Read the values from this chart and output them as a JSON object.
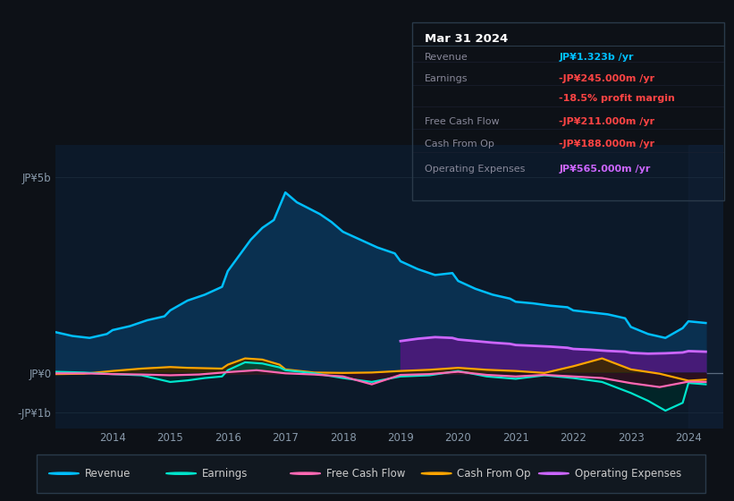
{
  "background_color": "#0d1117",
  "plot_bg_color": "#0c1929",
  "ylim": [
    -1400000000.0,
    5800000000.0
  ],
  "xlim": [
    2013.0,
    2024.6
  ],
  "ytick_values": [
    5000000000,
    0,
    -1000000000
  ],
  "ytick_labels": [
    "JP¥5b",
    "JP¥0",
    "-JP¥1b"
  ],
  "xtick_years": [
    2014,
    2015,
    2016,
    2017,
    2018,
    2019,
    2020,
    2021,
    2022,
    2023,
    2024
  ],
  "revenue_x": [
    2013.0,
    2013.3,
    2013.6,
    2013.9,
    2014.0,
    2014.3,
    2014.6,
    2014.9,
    2015.0,
    2015.3,
    2015.6,
    2015.9,
    2016.0,
    2016.2,
    2016.4,
    2016.6,
    2016.8,
    2017.0,
    2017.2,
    2017.4,
    2017.6,
    2017.8,
    2018.0,
    2018.3,
    2018.6,
    2018.9,
    2019.0,
    2019.3,
    2019.6,
    2019.9,
    2020.0,
    2020.3,
    2020.6,
    2020.9,
    2021.0,
    2021.3,
    2021.6,
    2021.9,
    2022.0,
    2022.3,
    2022.6,
    2022.9,
    2023.0,
    2023.3,
    2023.6,
    2023.9,
    2024.0,
    2024.3
  ],
  "revenue_y": [
    1050000000.0,
    950000000.0,
    900000000.0,
    1000000000.0,
    1100000000.0,
    1200000000.0,
    1350000000.0,
    1450000000.0,
    1600000000.0,
    1850000000.0,
    2000000000.0,
    2200000000.0,
    2600000000.0,
    3000000000.0,
    3400000000.0,
    3700000000.0,
    3900000000.0,
    4600000000.0,
    4350000000.0,
    4200000000.0,
    4050000000.0,
    3850000000.0,
    3600000000.0,
    3400000000.0,
    3200000000.0,
    3050000000.0,
    2850000000.0,
    2650000000.0,
    2500000000.0,
    2550000000.0,
    2350000000.0,
    2150000000.0,
    2000000000.0,
    1900000000.0,
    1820000000.0,
    1780000000.0,
    1720000000.0,
    1680000000.0,
    1600000000.0,
    1550000000.0,
    1500000000.0,
    1400000000.0,
    1180000000.0,
    1000000000.0,
    900000000.0,
    1150000000.0,
    1323000000.0,
    1280000000.0
  ],
  "earnings_x": [
    2013.0,
    2013.5,
    2014.0,
    2014.5,
    2015.0,
    2015.3,
    2015.6,
    2015.9,
    2016.0,
    2016.3,
    2016.6,
    2016.9,
    2017.0,
    2017.5,
    2018.0,
    2018.5,
    2019.0,
    2019.5,
    2020.0,
    2020.5,
    2021.0,
    2021.5,
    2022.0,
    2022.5,
    2023.0,
    2023.3,
    2023.6,
    2023.9,
    2024.0,
    2024.3
  ],
  "earnings_y": [
    40000000.0,
    20000000.0,
    -20000000.0,
    -50000000.0,
    -220000000.0,
    -180000000.0,
    -120000000.0,
    -80000000.0,
    80000000.0,
    280000000.0,
    250000000.0,
    150000000.0,
    80000000.0,
    0.0,
    -120000000.0,
    -220000000.0,
    -80000000.0,
    -50000000.0,
    60000000.0,
    -80000000.0,
    -140000000.0,
    -50000000.0,
    -120000000.0,
    -220000000.0,
    -500000000.0,
    -700000000.0,
    -950000000.0,
    -750000000.0,
    -245000000.0,
    -280000000.0
  ],
  "fcf_x": [
    2013.0,
    2013.5,
    2014.0,
    2014.5,
    2015.0,
    2015.5,
    2016.0,
    2016.5,
    2017.0,
    2017.5,
    2018.0,
    2018.5,
    2019.0,
    2019.5,
    2020.0,
    2020.5,
    2021.0,
    2021.5,
    2022.0,
    2022.5,
    2023.0,
    2023.5,
    2024.0,
    2024.3
  ],
  "fcf_y": [
    0.0,
    0.0,
    -20000000.0,
    -30000000.0,
    -50000000.0,
    -30000000.0,
    30000000.0,
    80000000.0,
    0.0,
    -30000000.0,
    -80000000.0,
    -280000000.0,
    -40000000.0,
    -20000000.0,
    40000000.0,
    -40000000.0,
    -80000000.0,
    -40000000.0,
    -80000000.0,
    -120000000.0,
    -250000000.0,
    -350000000.0,
    -211000000.0,
    -220000000.0
  ],
  "cfop_x": [
    2013.0,
    2013.5,
    2014.0,
    2014.5,
    2015.0,
    2015.3,
    2015.6,
    2015.9,
    2016.0,
    2016.3,
    2016.6,
    2016.9,
    2017.0,
    2017.5,
    2018.0,
    2018.5,
    2019.0,
    2019.5,
    2020.0,
    2020.5,
    2021.0,
    2021.5,
    2022.0,
    2022.5,
    2023.0,
    2023.5,
    2024.0,
    2024.3
  ],
  "cfop_y": [
    -20000000.0,
    -10000000.0,
    60000000.0,
    120000000.0,
    160000000.0,
    140000000.0,
    130000000.0,
    120000000.0,
    220000000.0,
    380000000.0,
    350000000.0,
    220000000.0,
    100000000.0,
    20000000.0,
    10000000.0,
    20000000.0,
    60000000.0,
    90000000.0,
    140000000.0,
    90000000.0,
    60000000.0,
    10000000.0,
    180000000.0,
    380000000.0,
    100000000.0,
    -10000000.0,
    -188000000.0,
    -160000000.0
  ],
  "opex_x": [
    2019.0,
    2019.3,
    2019.6,
    2019.9,
    2020.0,
    2020.3,
    2020.6,
    2020.9,
    2021.0,
    2021.3,
    2021.6,
    2021.9,
    2022.0,
    2022.3,
    2022.6,
    2022.9,
    2023.0,
    2023.3,
    2023.6,
    2023.9,
    2024.0,
    2024.3
  ],
  "opex_y": [
    820000000.0,
    880000000.0,
    920000000.0,
    900000000.0,
    860000000.0,
    820000000.0,
    780000000.0,
    750000000.0,
    720000000.0,
    700000000.0,
    680000000.0,
    650000000.0,
    620000000.0,
    600000000.0,
    570000000.0,
    550000000.0,
    520000000.0,
    500000000.0,
    510000000.0,
    530000000.0,
    565000000.0,
    550000000.0
  ],
  "colors": {
    "revenue_line": "#00bfff",
    "revenue_fill": "#0a3050",
    "earnings_line": "#00e5cc",
    "fcf_line": "#ff69b4",
    "cfop_line": "#ffa500",
    "opex_line": "#cc66ff",
    "opex_fill": "#4a1a7a",
    "zero_line": "#6a7a8a",
    "grid_line": "#1a2a3a",
    "tick_color": "#8899aa"
  },
  "legend": [
    {
      "label": "Revenue",
      "color": "#00bfff"
    },
    {
      "label": "Earnings",
      "color": "#00e5cc"
    },
    {
      "label": "Free Cash Flow",
      "color": "#ff69b4"
    },
    {
      "label": "Cash From Op",
      "color": "#ffa500"
    },
    {
      "label": "Operating Expenses",
      "color": "#cc66ff"
    }
  ],
  "tooltip_title": "Mar 31 2024",
  "tooltip_rows": [
    {
      "label": "Revenue",
      "value": "JP¥1.323b /yr",
      "vcolor": "#00bfff"
    },
    {
      "label": "Earnings",
      "value": "-JP¥245.000m /yr",
      "vcolor": "#ff4444"
    },
    {
      "label": "",
      "value": "-18.5% profit margin",
      "vcolor": "#ff4444"
    },
    {
      "label": "Free Cash Flow",
      "value": "-JP¥211.000m /yr",
      "vcolor": "#ff4444"
    },
    {
      "label": "Cash From Op",
      "value": "-JP¥188.000m /yr",
      "vcolor": "#ff4444"
    },
    {
      "label": "Operating Expenses",
      "value": "JP¥565.000m /yr",
      "vcolor": "#cc66ff"
    }
  ]
}
